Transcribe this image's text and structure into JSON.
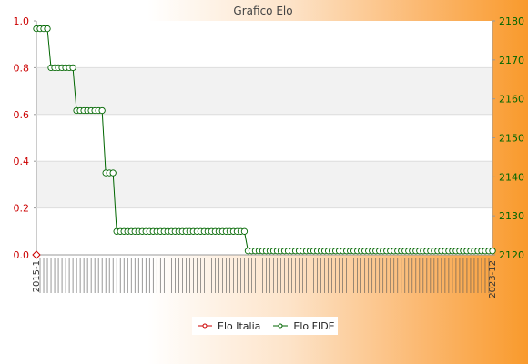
{
  "chart_data": {
    "type": "line",
    "title": "Grafico Elo",
    "left_axis": {
      "ylim": [
        0.0,
        1.0
      ],
      "ticks": [
        "0.0",
        "0.2",
        "0.4",
        "0.6",
        "0.8",
        "1.0"
      ],
      "color": "#cc0000"
    },
    "right_axis": {
      "ylim": [
        2120,
        2180
      ],
      "ticks": [
        "2120",
        "2130",
        "2140",
        "2150",
        "2160",
        "2170",
        "2180"
      ],
      "color": "#006600"
    },
    "x_first_label": "2015-1",
    "x_last_label": "2023-12",
    "series": [
      {
        "name": "Elo Italia",
        "color": "#cc0000",
        "axis": "left",
        "points": [
          [
            0,
            0
          ]
        ]
      },
      {
        "name": "Elo FIDE",
        "color": "#006600",
        "axis": "right",
        "steps": [
          [
            0,
            2178
          ],
          [
            4,
            2168
          ],
          [
            11,
            2157
          ],
          [
            19,
            2141
          ],
          [
            22,
            2126
          ],
          [
            58,
            2121
          ],
          [
            125,
            2121
          ]
        ]
      }
    ],
    "legend_position": "bottom-center",
    "grid": true
  }
}
